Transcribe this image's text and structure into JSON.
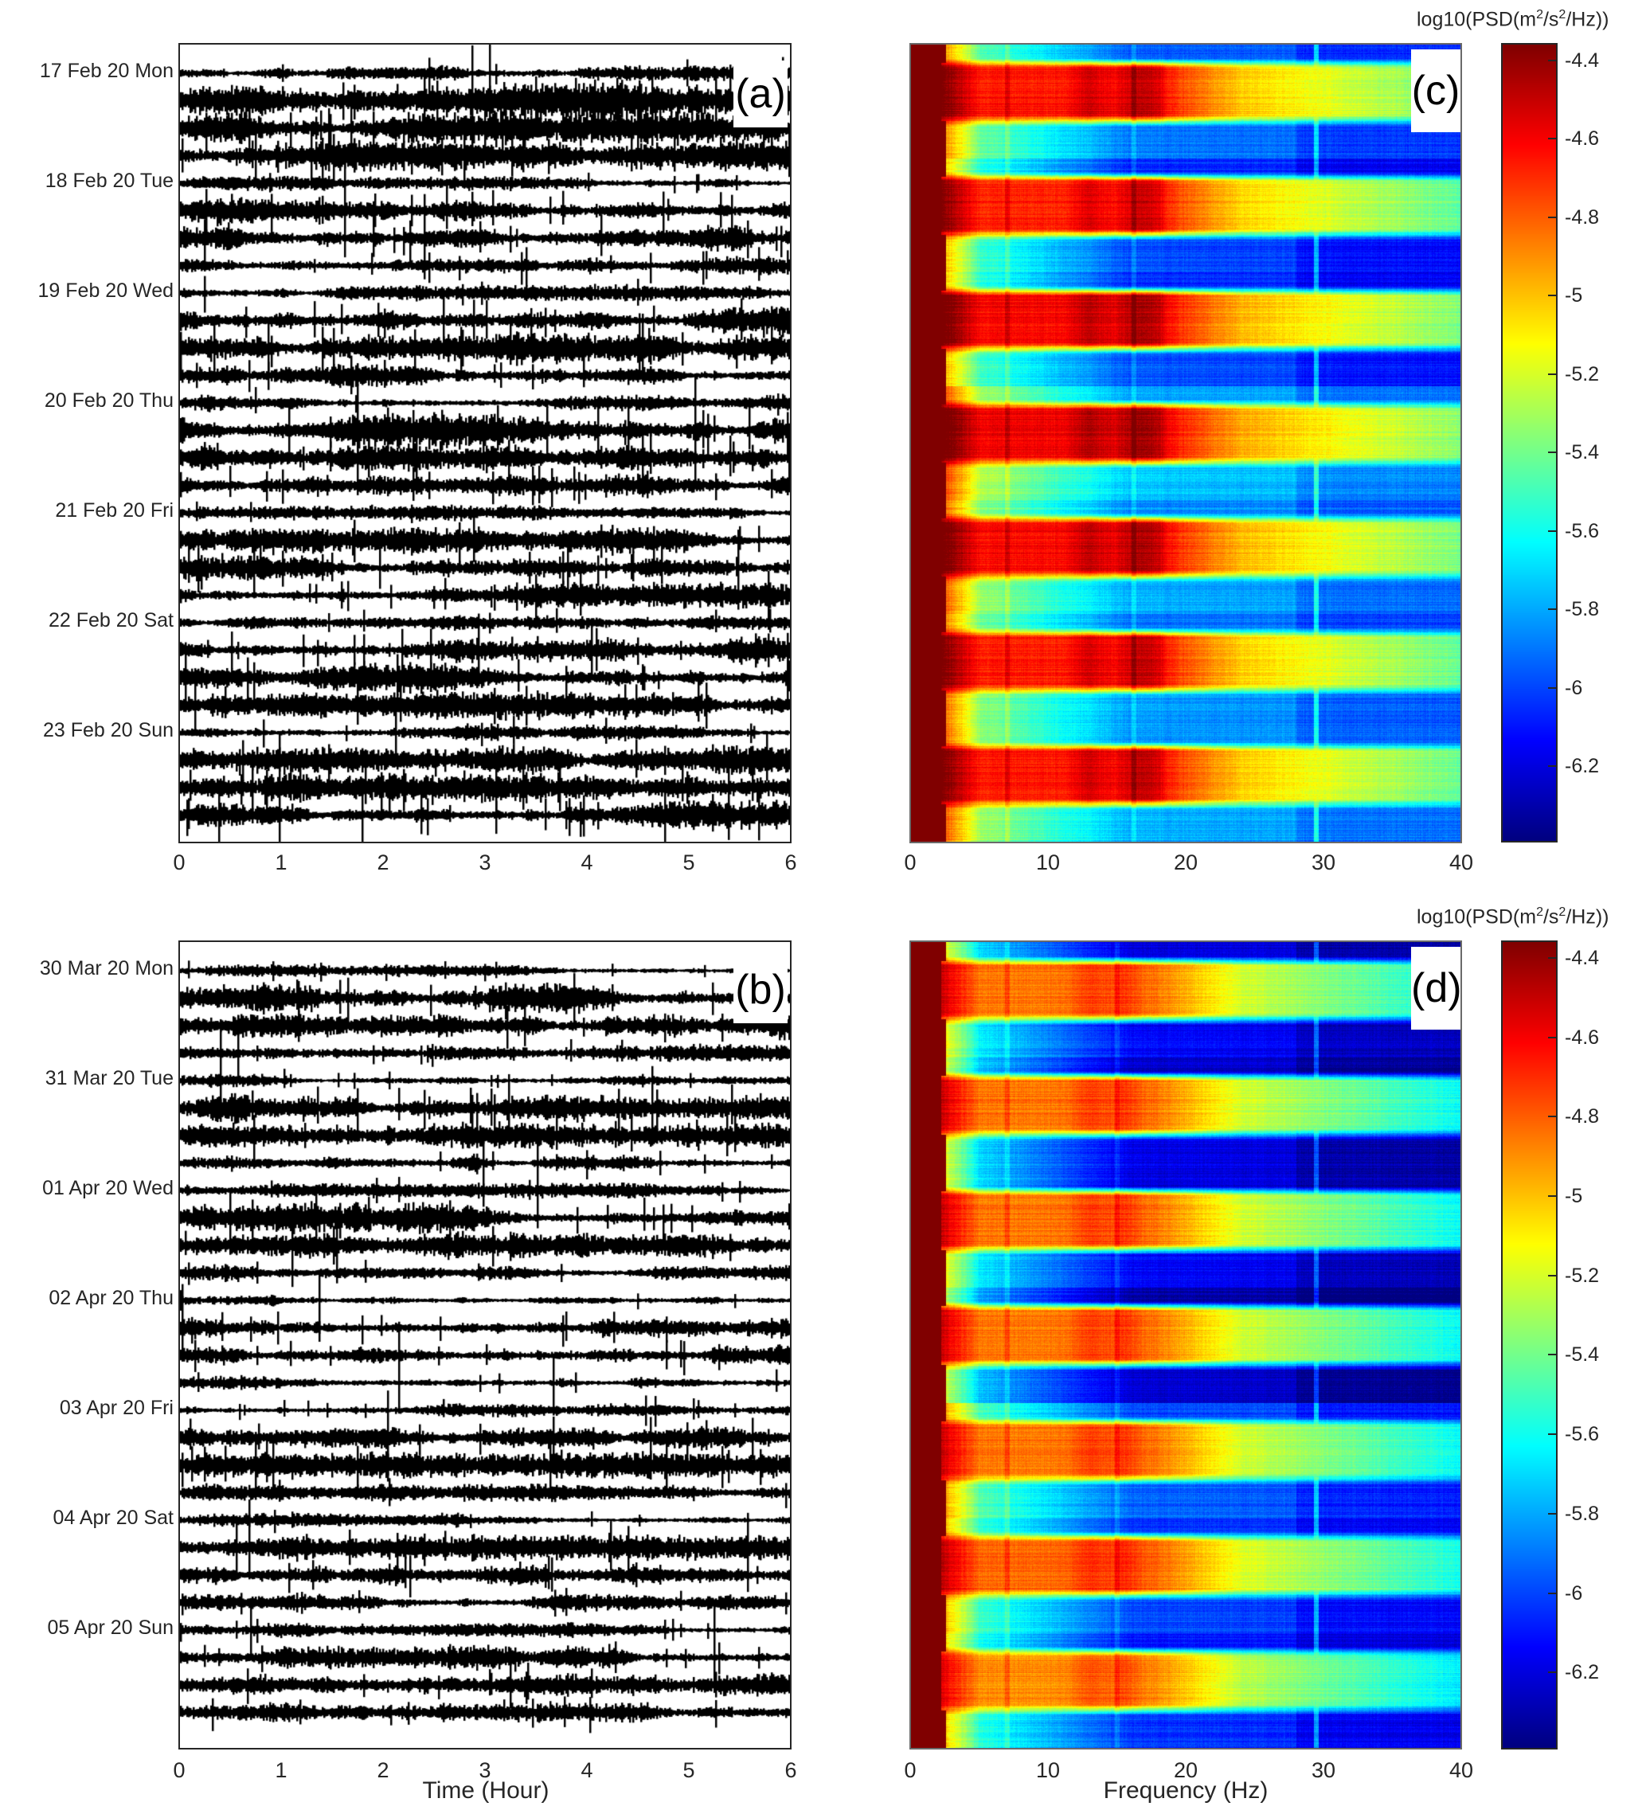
{
  "chart_data": [
    {
      "id": "a",
      "type": "line",
      "panel_label": "(a)",
      "description": "Seismic waveform traces, four 6-hour segments per day",
      "xlabel": "",
      "xlim": [
        0,
        6
      ],
      "xticks": [
        "0",
        "1",
        "2",
        "3",
        "4",
        "5",
        "6"
      ],
      "traces_per_day": 4,
      "day_labels": [
        "17 Feb 20 Mon",
        "18 Feb 20 Tue",
        "19 Feb 20 Wed",
        "20 Feb 20 Thu",
        "21 Feb 20 Fri",
        "22 Feb 20 Sat",
        "23 Feb 20 Sun"
      ],
      "trace_amplitude": [
        0.25,
        1.0,
        0.85,
        0.8,
        0.2,
        0.75,
        0.85,
        0.6,
        0.25,
        0.8,
        0.8,
        0.55,
        0.3,
        1.0,
        0.75,
        0.5,
        0.25,
        0.7,
        0.75,
        0.6,
        0.25,
        0.75,
        0.8,
        0.65,
        0.3,
        0.7,
        0.7,
        0.7
      ],
      "seed": 11
    },
    {
      "id": "b",
      "type": "line",
      "panel_label": "(b)",
      "description": "Seismic waveform traces, four 6-hour segments per day",
      "xlabel": "Time (Hour)",
      "xlim": [
        0,
        6
      ],
      "xticks": [
        "0",
        "1",
        "2",
        "3",
        "4",
        "5",
        "6"
      ],
      "traces_per_day": 4,
      "day_labels": [
        "30 Mar 20 Mon",
        "31 Mar 20 Tue",
        "01 Apr 20 Wed",
        "02 Apr 20 Thu",
        "03 Apr 20 Fri",
        "04 Apr 20 Sat",
        "05 Apr 20 Sun"
      ],
      "trace_amplitude": [
        0.12,
        0.75,
        0.6,
        0.3,
        0.15,
        0.7,
        0.65,
        0.3,
        0.2,
        0.75,
        0.6,
        0.35,
        0.2,
        0.6,
        0.6,
        0.3,
        0.2,
        0.75,
        0.65,
        0.3,
        0.15,
        0.6,
        0.6,
        0.35,
        0.2,
        0.55,
        0.5,
        0.4
      ],
      "seed": 37
    },
    {
      "id": "c",
      "type": "heatmap",
      "panel_label": "(c)",
      "description": "Spectrogram, daily (day-time high / night-time low) PSD cycles for 17-23 Feb 2020",
      "xlabel": "",
      "xlim": [
        0,
        40
      ],
      "xticks": [
        "0",
        "10",
        "20",
        "30",
        "40"
      ],
      "colorbar": {
        "title_main": "log10(PSD(m",
        "title_sup1": "2",
        "title_mid": "/s",
        "title_sup2": "2",
        "title_end": "/Hz))",
        "range": [
          -6.39,
          -4.36
        ],
        "ticks": [
          "-4.4",
          "-4.6",
          "-4.8",
          "-5",
          "-5.2",
          "-5.4",
          "-5.6",
          "-5.8",
          "-6",
          "-6.2"
        ],
        "tick_values": [
          -4.4,
          -4.6,
          -4.8,
          -5.0,
          -5.2,
          -5.4,
          -5.6,
          -5.8,
          -6.0,
          -6.2
        ],
        "colormap": "jet"
      },
      "days": 7,
      "day_level": [
        -4.65,
        -4.68,
        -4.62,
        -4.6,
        -4.62,
        -4.66,
        -4.66
      ],
      "night_level": [
        -5.85,
        -5.95,
        -5.95,
        -5.7,
        -5.75,
        -5.8,
        -5.75
      ],
      "spectral_peak_hz": [
        13,
        16,
        17.5
      ],
      "line_hz": [
        7,
        16.2,
        29.5
      ],
      "seed": 5
    },
    {
      "id": "d",
      "type": "heatmap",
      "panel_label": "(d)",
      "description": "Spectrogram, daily PSD cycles for 30 Mar - 05 Apr 2020 (lower levels)",
      "xlabel": "Frequency (Hz)",
      "xlim": [
        0,
        40
      ],
      "xticks": [
        "0",
        "10",
        "20",
        "30",
        "40"
      ],
      "colorbar": {
        "title_main": "log10(PSD(m",
        "title_sup1": "2",
        "title_mid": "/s",
        "title_sup2": "2",
        "title_end": "/Hz))",
        "range": [
          -6.39,
          -4.36
        ],
        "ticks": [
          "-4.4",
          "-4.6",
          "-4.8",
          "-5",
          "-5.2",
          "-5.4",
          "-5.6",
          "-5.8",
          "-6",
          "-6.2"
        ],
        "tick_values": [
          -4.4,
          -4.6,
          -4.8,
          -5.0,
          -5.2,
          -5.4,
          -5.6,
          -5.8,
          -6.0,
          -6.2
        ],
        "colormap": "jet"
      },
      "days": 7,
      "day_level": [
        -4.85,
        -4.85,
        -4.85,
        -4.85,
        -4.85,
        -4.82,
        -4.9
      ],
      "night_level": [
        -6.1,
        -6.15,
        -6.1,
        -6.2,
        -5.9,
        -5.95,
        -6.0
      ],
      "spectral_peak_hz": [
        13,
        15.5
      ],
      "line_hz": [
        7,
        15,
        29.5
      ],
      "seed": 19
    }
  ]
}
